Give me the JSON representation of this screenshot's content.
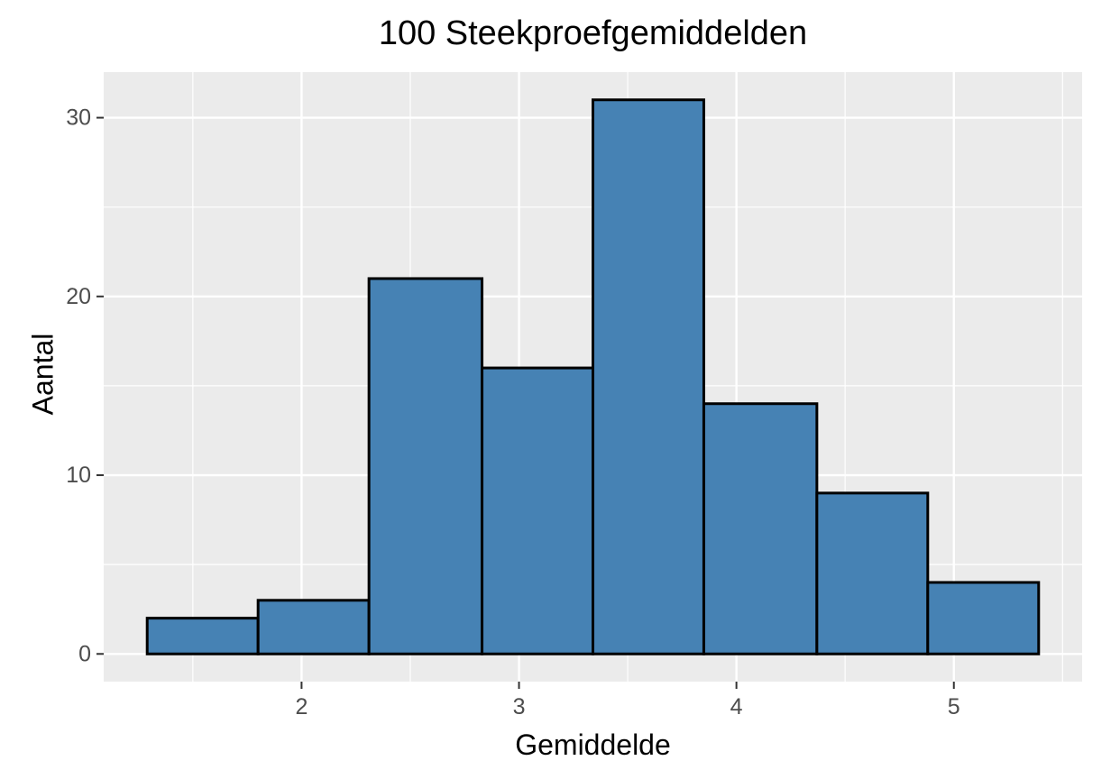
{
  "colors": {
    "panel_background": "#EBEBEB",
    "gridline": "#FFFFFF",
    "bar_fill": "#4682B4",
    "bar_outline": "#000000",
    "tick_label": "#4D4D4D",
    "tick_mark": "#333333"
  },
  "chart_data": {
    "type": "bar",
    "subtype": "histogram",
    "title": "100 Steekproefgemiddelden",
    "xlabel": "Gemiddelde",
    "ylabel": "Aantal",
    "bins": [
      {
        "x_start": 1.29,
        "x_end": 1.8,
        "count": 2
      },
      {
        "x_start": 1.8,
        "x_end": 2.31,
        "count": 3
      },
      {
        "x_start": 2.31,
        "x_end": 2.83,
        "count": 21
      },
      {
        "x_start": 2.83,
        "x_end": 3.34,
        "count": 16
      },
      {
        "x_start": 3.34,
        "x_end": 3.85,
        "count": 31
      },
      {
        "x_start": 3.85,
        "x_end": 4.37,
        "count": 14
      },
      {
        "x_start": 4.37,
        "x_end": 4.88,
        "count": 9
      },
      {
        "x_start": 4.88,
        "x_end": 5.39,
        "count": 4
      }
    ],
    "xlim": [
      1.09,
      5.59
    ],
    "ylim": [
      -1.55,
      32.55
    ],
    "x_ticks": [
      2,
      3,
      4,
      5
    ],
    "x_tick_labels": [
      "2",
      "3",
      "4",
      "5"
    ],
    "x_minor_gridlines": [
      1.5,
      2.5,
      3.5,
      4.5,
      5.5
    ],
    "y_ticks": [
      0,
      10,
      20,
      30
    ],
    "y_tick_labels": [
      "0",
      "10",
      "20",
      "30"
    ],
    "y_minor_gridlines": [
      5,
      15,
      25
    ],
    "grid": true,
    "legend": "none"
  }
}
